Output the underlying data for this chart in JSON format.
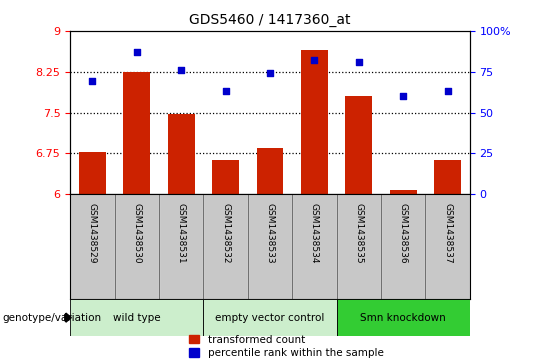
{
  "title": "GDS5460 / 1417360_at",
  "samples": [
    "GSM1438529",
    "GSM1438530",
    "GSM1438531",
    "GSM1438532",
    "GSM1438533",
    "GSM1438534",
    "GSM1438535",
    "GSM1438536",
    "GSM1438537"
  ],
  "bar_values": [
    6.78,
    8.25,
    7.47,
    6.63,
    6.84,
    8.65,
    7.8,
    6.08,
    6.62
  ],
  "dot_values": [
    69,
    87,
    76,
    63,
    74,
    82,
    81,
    60,
    63
  ],
  "ylim_left": [
    6,
    9
  ],
  "ylim_right": [
    0,
    100
  ],
  "yticks_left": [
    6,
    6.75,
    7.5,
    8.25,
    9
  ],
  "yticks_right": [
    0,
    25,
    50,
    75,
    100
  ],
  "bar_color": "#CC2200",
  "dot_color": "#0000CC",
  "hline_values": [
    6.75,
    7.5,
    8.25
  ],
  "group_configs": [
    {
      "indices": [
        0,
        1,
        2
      ],
      "label": "wild type",
      "color": "#CCEECC"
    },
    {
      "indices": [
        3,
        4,
        5
      ],
      "label": "empty vector control",
      "color": "#CCEECC"
    },
    {
      "indices": [
        6,
        7,
        8
      ],
      "label": "Smn knockdown",
      "color": "#33CC33"
    }
  ],
  "legend_labels": [
    "transformed count",
    "percentile rank within the sample"
  ],
  "genotype_label": "genotype/variation",
  "tick_area_bg": "#C8C8C8",
  "plot_bg": "#FFFFFF"
}
